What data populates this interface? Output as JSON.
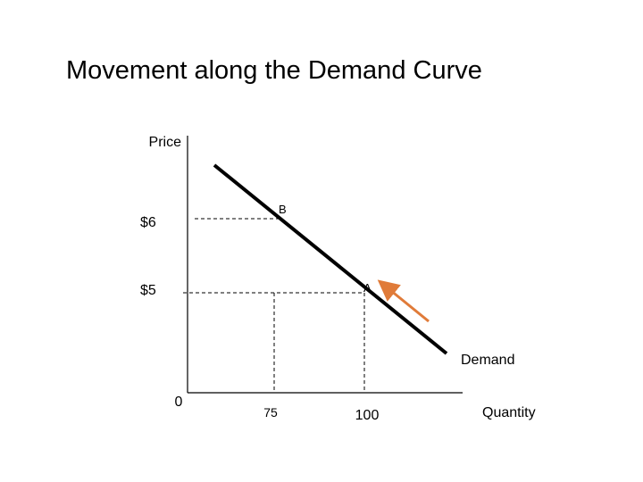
{
  "title": "Movement along the Demand Curve",
  "axis_labels": {
    "y": "Price",
    "x": "Quantity"
  },
  "price_labels": [
    "$6",
    "$5"
  ],
  "quantity_labels": [
    "0",
    "75",
    "100"
  ],
  "points": [
    "B",
    "A"
  ],
  "curve_label": "Demand"
}
